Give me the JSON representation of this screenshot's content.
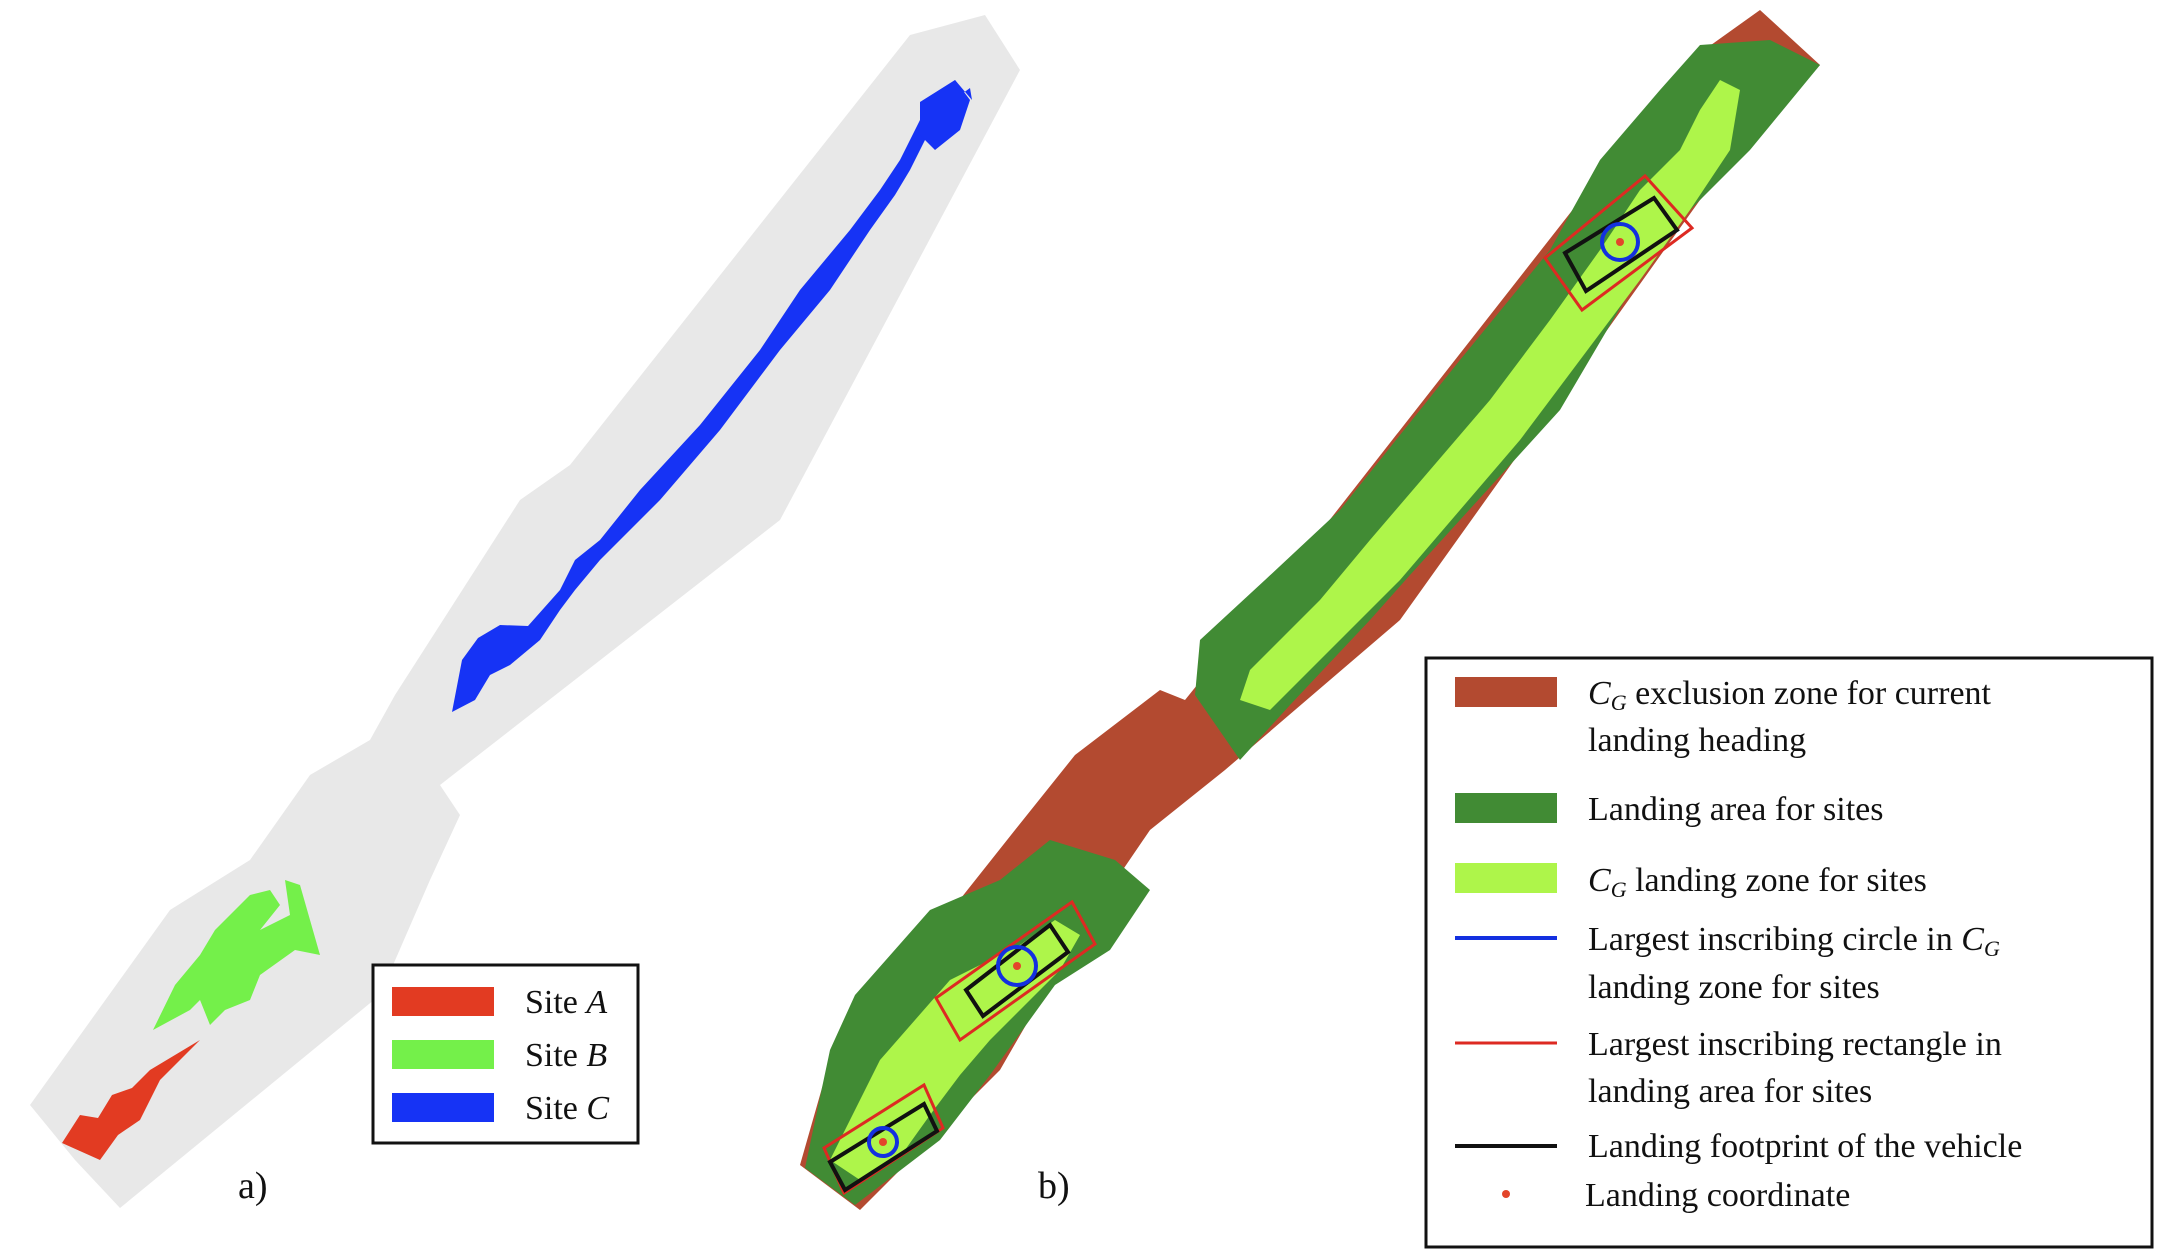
{
  "panel_a": {
    "label": "a)",
    "legend": [
      {
        "label": "Site ",
        "var": "A",
        "color": "#e23b22"
      },
      {
        "label": "Site ",
        "var": "B",
        "color": "#74f04a"
      },
      {
        "label": "Site ",
        "var": "C",
        "color": "#1633f5"
      }
    ]
  },
  "panel_b": {
    "label": "b)",
    "legend": {
      "exclusion": {
        "var": "C",
        "sub": "G",
        "line1": " exclusion zone for current",
        "line2": "landing heading",
        "color": "#b34a30"
      },
      "landing_area": {
        "line1": "Landing area for sites",
        "color": "#418b34"
      },
      "landing_zone": {
        "var": "C",
        "sub": "G",
        "line1": " landing zone for sites",
        "color": "#aef54a"
      },
      "circle": {
        "line1": "Largest inscribing circle in ",
        "var": "C",
        "sub": "G",
        "line2": "landing zone for sites",
        "color": "#1330e0"
      },
      "rectangle": {
        "line1": "Largest inscribing rectangle in",
        "line2": "landing area for sites",
        "color": "#dd2a22"
      },
      "footprint": {
        "line1": "Landing footprint of the vehicle",
        "color": "#111111"
      },
      "coordinate": {
        "line1": "Landing coordinate",
        "color": "#e3452a"
      }
    }
  }
}
